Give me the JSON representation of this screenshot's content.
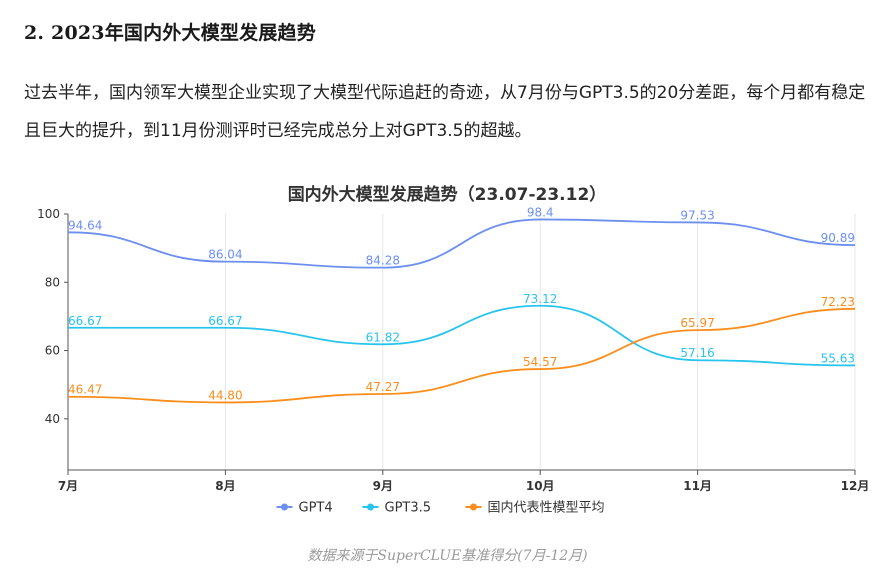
{
  "article": {
    "heading": "2. 2023年国内外大模型发展趋势",
    "paragraph": "过去半年，国内领军大模型企业实现了大模型代际追赶的奇迹，从7月份与GPT3.5的20分差距，每个月都有稳定且巨大的提升，到11月份测评时已经完成总分上对GPT3.5的超越。",
    "caption": "数据来源于SuperCLUE基准得分(7月-12月)"
  },
  "chart_data": {
    "type": "line",
    "title": "国内外大模型发展趋势（23.07-23.12）",
    "categories": [
      "7月",
      "8月",
      "9月",
      "10月",
      "11月",
      "12月"
    ],
    "ylim": [
      25,
      100
    ],
    "yticks": [
      40,
      60,
      80,
      100
    ],
    "grid": "vertical",
    "legend_position": "bottom",
    "series": [
      {
        "name": "GPT4",
        "color": "#6d8ff0",
        "values": [
          94.64,
          86.04,
          84.28,
          98.4,
          97.53,
          90.89
        ],
        "labels": [
          "94.64",
          "86.04",
          "84.28",
          "98.4",
          "97.53",
          "90.89"
        ]
      },
      {
        "name": "GPT3.5",
        "color": "#27c4ee",
        "values": [
          66.67,
          66.67,
          61.82,
          73.12,
          57.16,
          55.63
        ],
        "labels": [
          "66.67",
          "66.67",
          "61.82",
          "73.12",
          "57.16",
          "55.63"
        ]
      },
      {
        "name": "国内代表性模型平均",
        "color": "#fa8e1c",
        "values": [
          46.47,
          44.8,
          47.27,
          54.57,
          65.97,
          72.23
        ],
        "labels": [
          "46.47",
          "44.80",
          "47.27",
          "54.57",
          "65.97",
          "72.23"
        ]
      }
    ]
  }
}
